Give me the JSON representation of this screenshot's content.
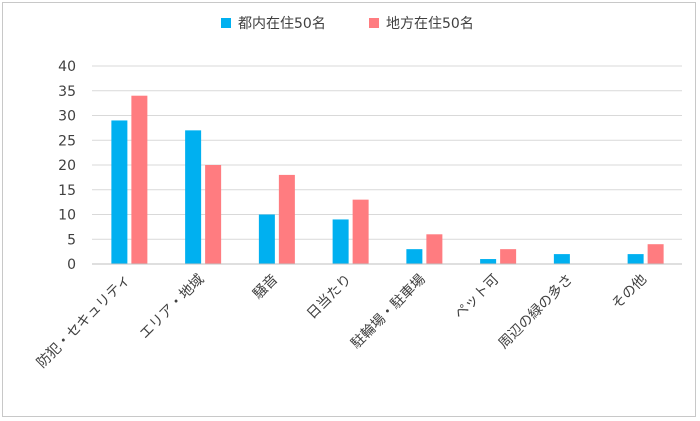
{
  "chart_data": {
    "type": "bar",
    "categories": [
      "防犯・セキュリティ",
      "エリア・地域",
      "騒音",
      "日当たり",
      "駐輪場・駐車場",
      "ペット可",
      "周辺の緑の多さ",
      "その他"
    ],
    "series": [
      {
        "name": "都内在住50名",
        "values": [
          29,
          27,
          10,
          9,
          3,
          1,
          2,
          2
        ],
        "color": "#00b0f0"
      },
      {
        "name": "地方在住50名",
        "values": [
          34,
          20,
          18,
          13,
          6,
          3,
          0,
          4
        ],
        "color": "#ff7c80"
      }
    ],
    "ylim": [
      0,
      40
    ],
    "yticks": [
      0,
      5,
      10,
      15,
      20,
      25,
      30,
      35,
      40
    ],
    "grid": true,
    "legend_position": "top-center",
    "gridline_color": "#d9d9d9",
    "axis_color": "#bfbfbf"
  }
}
